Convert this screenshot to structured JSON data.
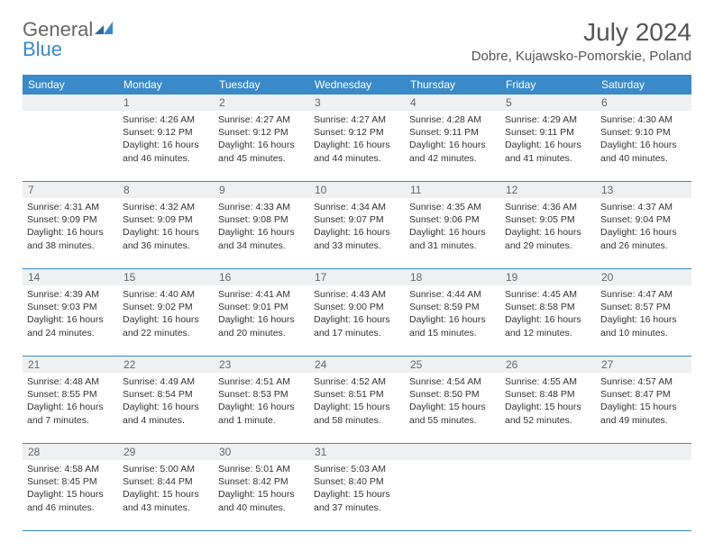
{
  "brand": {
    "general": "General",
    "blue": "Blue"
  },
  "title": "July 2024",
  "location": "Dobre, Kujawsko-Pomorskie, Poland",
  "day_labels": [
    "Sunday",
    "Monday",
    "Tuesday",
    "Wednesday",
    "Thursday",
    "Friday",
    "Saturday"
  ],
  "colors": {
    "header_bg": "#3a8ac9",
    "header_fg": "#ffffff",
    "daynum_bg": "#eef0f1",
    "text": "#333333",
    "page_bg": "#ffffff"
  },
  "weeks": [
    {
      "nums": [
        "",
        "1",
        "2",
        "3",
        "4",
        "5",
        "6"
      ],
      "cells": [
        null,
        {
          "sunrise": "Sunrise: 4:26 AM",
          "sunset": "Sunset: 9:12 PM",
          "daylight": "Daylight: 16 hours and 46 minutes."
        },
        {
          "sunrise": "Sunrise: 4:27 AM",
          "sunset": "Sunset: 9:12 PM",
          "daylight": "Daylight: 16 hours and 45 minutes."
        },
        {
          "sunrise": "Sunrise: 4:27 AM",
          "sunset": "Sunset: 9:12 PM",
          "daylight": "Daylight: 16 hours and 44 minutes."
        },
        {
          "sunrise": "Sunrise: 4:28 AM",
          "sunset": "Sunset: 9:11 PM",
          "daylight": "Daylight: 16 hours and 42 minutes."
        },
        {
          "sunrise": "Sunrise: 4:29 AM",
          "sunset": "Sunset: 9:11 PM",
          "daylight": "Daylight: 16 hours and 41 minutes."
        },
        {
          "sunrise": "Sunrise: 4:30 AM",
          "sunset": "Sunset: 9:10 PM",
          "daylight": "Daylight: 16 hours and 40 minutes."
        }
      ]
    },
    {
      "nums": [
        "7",
        "8",
        "9",
        "10",
        "11",
        "12",
        "13"
      ],
      "cells": [
        {
          "sunrise": "Sunrise: 4:31 AM",
          "sunset": "Sunset: 9:09 PM",
          "daylight": "Daylight: 16 hours and 38 minutes."
        },
        {
          "sunrise": "Sunrise: 4:32 AM",
          "sunset": "Sunset: 9:09 PM",
          "daylight": "Daylight: 16 hours and 36 minutes."
        },
        {
          "sunrise": "Sunrise: 4:33 AM",
          "sunset": "Sunset: 9:08 PM",
          "daylight": "Daylight: 16 hours and 34 minutes."
        },
        {
          "sunrise": "Sunrise: 4:34 AM",
          "sunset": "Sunset: 9:07 PM",
          "daylight": "Daylight: 16 hours and 33 minutes."
        },
        {
          "sunrise": "Sunrise: 4:35 AM",
          "sunset": "Sunset: 9:06 PM",
          "daylight": "Daylight: 16 hours and 31 minutes."
        },
        {
          "sunrise": "Sunrise: 4:36 AM",
          "sunset": "Sunset: 9:05 PM",
          "daylight": "Daylight: 16 hours and 29 minutes."
        },
        {
          "sunrise": "Sunrise: 4:37 AM",
          "sunset": "Sunset: 9:04 PM",
          "daylight": "Daylight: 16 hours and 26 minutes."
        }
      ]
    },
    {
      "nums": [
        "14",
        "15",
        "16",
        "17",
        "18",
        "19",
        "20"
      ],
      "cells": [
        {
          "sunrise": "Sunrise: 4:39 AM",
          "sunset": "Sunset: 9:03 PM",
          "daylight": "Daylight: 16 hours and 24 minutes."
        },
        {
          "sunrise": "Sunrise: 4:40 AM",
          "sunset": "Sunset: 9:02 PM",
          "daylight": "Daylight: 16 hours and 22 minutes."
        },
        {
          "sunrise": "Sunrise: 4:41 AM",
          "sunset": "Sunset: 9:01 PM",
          "daylight": "Daylight: 16 hours and 20 minutes."
        },
        {
          "sunrise": "Sunrise: 4:43 AM",
          "sunset": "Sunset: 9:00 PM",
          "daylight": "Daylight: 16 hours and 17 minutes."
        },
        {
          "sunrise": "Sunrise: 4:44 AM",
          "sunset": "Sunset: 8:59 PM",
          "daylight": "Daylight: 16 hours and 15 minutes."
        },
        {
          "sunrise": "Sunrise: 4:45 AM",
          "sunset": "Sunset: 8:58 PM",
          "daylight": "Daylight: 16 hours and 12 minutes."
        },
        {
          "sunrise": "Sunrise: 4:47 AM",
          "sunset": "Sunset: 8:57 PM",
          "daylight": "Daylight: 16 hours and 10 minutes."
        }
      ]
    },
    {
      "nums": [
        "21",
        "22",
        "23",
        "24",
        "25",
        "26",
        "27"
      ],
      "cells": [
        {
          "sunrise": "Sunrise: 4:48 AM",
          "sunset": "Sunset: 8:55 PM",
          "daylight": "Daylight: 16 hours and 7 minutes."
        },
        {
          "sunrise": "Sunrise: 4:49 AM",
          "sunset": "Sunset: 8:54 PM",
          "daylight": "Daylight: 16 hours and 4 minutes."
        },
        {
          "sunrise": "Sunrise: 4:51 AM",
          "sunset": "Sunset: 8:53 PM",
          "daylight": "Daylight: 16 hours and 1 minute."
        },
        {
          "sunrise": "Sunrise: 4:52 AM",
          "sunset": "Sunset: 8:51 PM",
          "daylight": "Daylight: 15 hours and 58 minutes."
        },
        {
          "sunrise": "Sunrise: 4:54 AM",
          "sunset": "Sunset: 8:50 PM",
          "daylight": "Daylight: 15 hours and 55 minutes."
        },
        {
          "sunrise": "Sunrise: 4:55 AM",
          "sunset": "Sunset: 8:48 PM",
          "daylight": "Daylight: 15 hours and 52 minutes."
        },
        {
          "sunrise": "Sunrise: 4:57 AM",
          "sunset": "Sunset: 8:47 PM",
          "daylight": "Daylight: 15 hours and 49 minutes."
        }
      ]
    },
    {
      "nums": [
        "28",
        "29",
        "30",
        "31",
        "",
        "",
        ""
      ],
      "cells": [
        {
          "sunrise": "Sunrise: 4:58 AM",
          "sunset": "Sunset: 8:45 PM",
          "daylight": "Daylight: 15 hours and 46 minutes."
        },
        {
          "sunrise": "Sunrise: 5:00 AM",
          "sunset": "Sunset: 8:44 PM",
          "daylight": "Daylight: 15 hours and 43 minutes."
        },
        {
          "sunrise": "Sunrise: 5:01 AM",
          "sunset": "Sunset: 8:42 PM",
          "daylight": "Daylight: 15 hours and 40 minutes."
        },
        {
          "sunrise": "Sunrise: 5:03 AM",
          "sunset": "Sunset: 8:40 PM",
          "daylight": "Daylight: 15 hours and 37 minutes."
        },
        null,
        null,
        null
      ]
    }
  ]
}
